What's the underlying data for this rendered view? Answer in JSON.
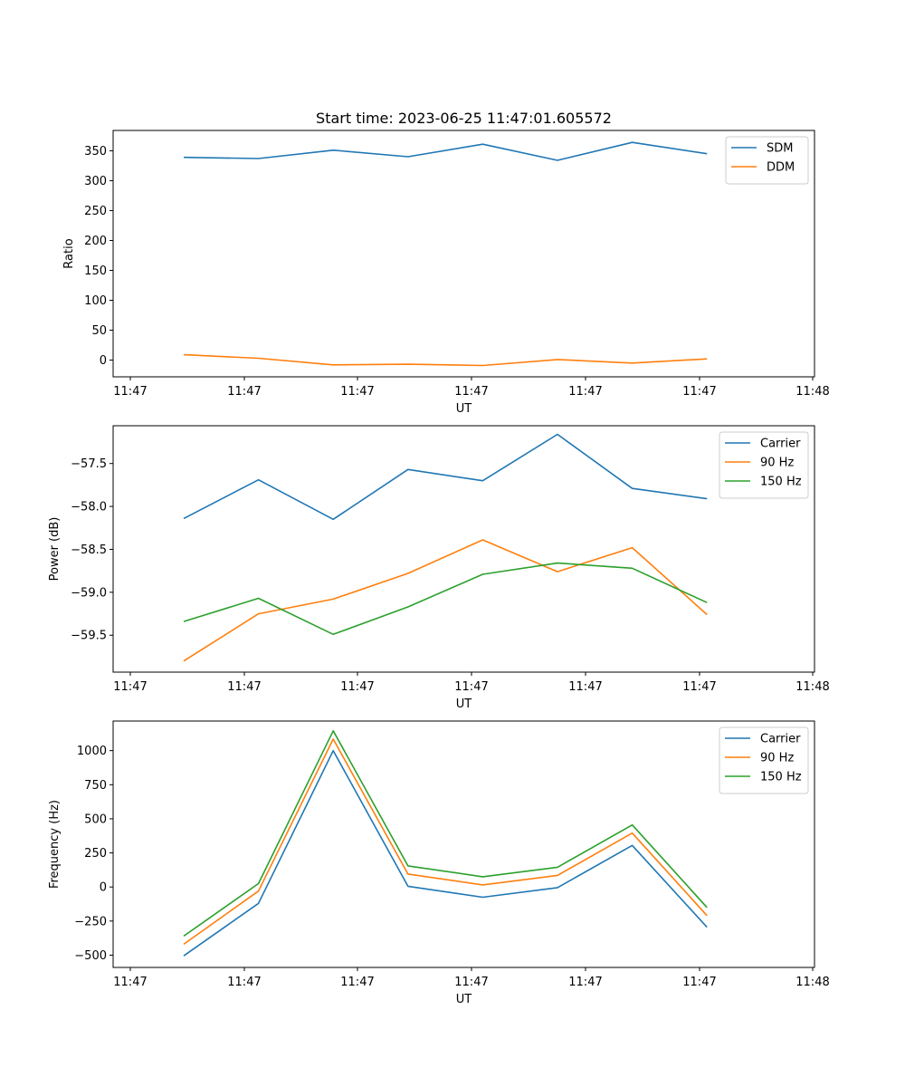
{
  "title": "Start time: 2023-06-25 11:47:01.605572",
  "chart_data": [
    {
      "type": "line",
      "xlabel": "UT",
      "ylabel": "Ratio",
      "xtick_labels": [
        "11:47",
        "11:47",
        "11:47",
        "11:47",
        "11:47",
        "11:47",
        "11:48"
      ],
      "yticks": [
        0,
        50,
        100,
        150,
        200,
        250,
        300,
        350
      ],
      "ylim": [
        -28,
        384
      ],
      "grid": false,
      "legend_position": "top-right",
      "series": [
        {
          "name": "SDM",
          "color": "#1f77b4",
          "values": [
            339,
            337,
            351,
            340,
            361,
            334,
            364,
            345
          ]
        },
        {
          "name": "DDM",
          "color": "#ff7f0e",
          "values": [
            9,
            3,
            -8,
            -7,
            -9,
            1,
            -5,
            2
          ]
        }
      ]
    },
    {
      "type": "line",
      "xlabel": "UT",
      "ylabel": "Power (dB)",
      "xtick_labels": [
        "11:47",
        "11:47",
        "11:47",
        "11:47",
        "11:47",
        "11:47",
        "11:48"
      ],
      "yticks": [
        -59.5,
        -59.0,
        -58.5,
        -58.0,
        -57.5
      ],
      "ytick_labels": [
        "−59.5",
        "−59.0",
        "−58.5",
        "−58.0",
        "−57.5"
      ],
      "ylim": [
        -59.93,
        -57.06
      ],
      "grid": false,
      "legend_position": "top-right",
      "series": [
        {
          "name": "Carrier",
          "color": "#1f77b4",
          "values": [
            -58.14,
            -57.69,
            -58.15,
            -57.57,
            -57.7,
            -57.16,
            -57.79,
            -57.91
          ]
        },
        {
          "name": "90 Hz",
          "color": "#ff7f0e",
          "values": [
            -59.8,
            -59.25,
            -59.08,
            -58.78,
            -58.39,
            -58.76,
            -58.48,
            -59.26
          ]
        },
        {
          "name": "150 Hz",
          "color": "#2ca02c",
          "values": [
            -59.34,
            -59.07,
            -59.49,
            -59.17,
            -58.79,
            -58.66,
            -58.72,
            -59.12
          ]
        }
      ]
    },
    {
      "type": "line",
      "xlabel": "UT",
      "ylabel": "Frequency (Hz)",
      "xtick_labels": [
        "11:47",
        "11:47",
        "11:47",
        "11:47",
        "11:47",
        "11:47",
        "11:48"
      ],
      "yticks": [
        -500,
        -250,
        0,
        250,
        500,
        750,
        1000
      ],
      "ytick_labels": [
        "−500",
        "−250",
        "0",
        "250",
        "500",
        "750",
        "1000"
      ],
      "ylim": [
        -590,
        1217
      ],
      "grid": false,
      "legend_position": "top-right",
      "series": [
        {
          "name": "Carrier",
          "color": "#1f77b4",
          "values": [
            -505,
            -120,
            1000,
            5,
            -75,
            -5,
            305,
            -295
          ]
        },
        {
          "name": "90 Hz",
          "color": "#ff7f0e",
          "values": [
            -420,
            -30,
            1085,
            95,
            15,
            85,
            395,
            -210
          ]
        },
        {
          "name": "150 Hz",
          "color": "#2ca02c",
          "values": [
            -360,
            25,
            1145,
            155,
            75,
            145,
            455,
            -150
          ]
        }
      ]
    }
  ]
}
